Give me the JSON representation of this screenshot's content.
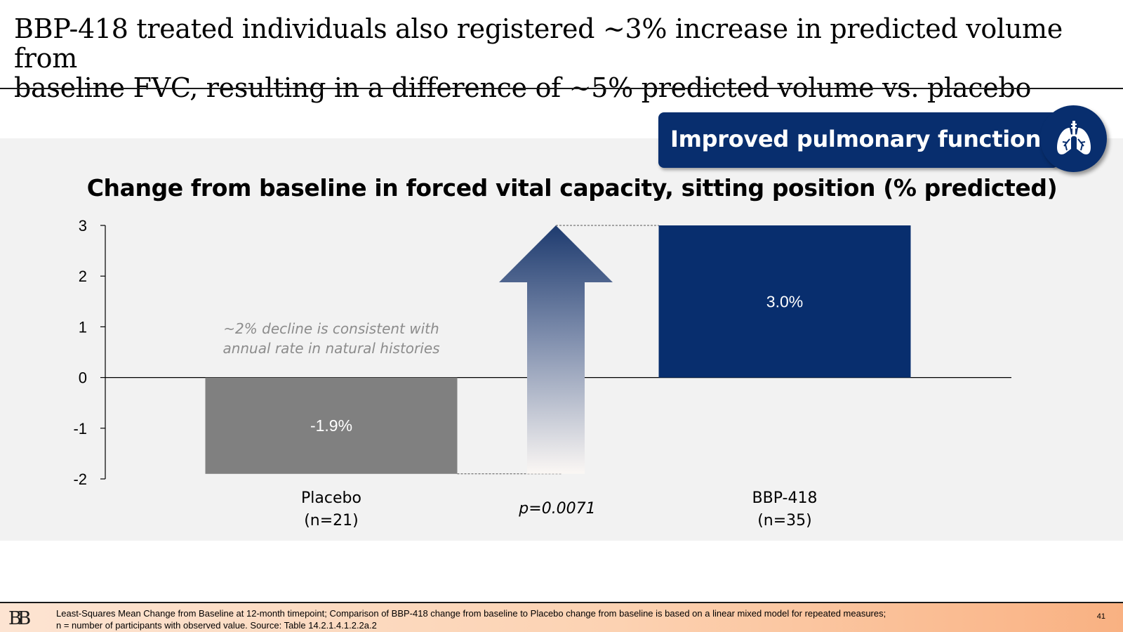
{
  "slide": {
    "title_line1": "BBP-418 treated individuals also registered ~3% increase in predicted volume from",
    "title_line2": "baseline FVC, resulting in a difference of ~5% predicted volume vs. placebo"
  },
  "banner": {
    "text": "Improved pulmonary function",
    "icon": "lungs-icon"
  },
  "chart_data": {
    "type": "bar",
    "title": "Change from baseline in forced vital capacity, sitting position (% predicted)",
    "categories": [
      {
        "name": "Placebo",
        "n_label": "(n=21)"
      },
      {
        "name": "BBP-418",
        "n_label": "(n=35)"
      }
    ],
    "values": [
      -1.9,
      3.0
    ],
    "data_labels": [
      "-1.9%",
      "3.0%"
    ],
    "colors": [
      "#808080",
      "#082e6e"
    ],
    "ylim": [
      -2,
      3
    ],
    "yticks": [
      "3",
      "2",
      "1",
      "0",
      "-1",
      "-2"
    ],
    "annotation": {
      "line1": "~2% decline is consistent with",
      "line2": "annual rate in natural histories"
    },
    "pvalue": "p=0.0071",
    "difference_arrow": {
      "from": -1.9,
      "to": 3.0
    }
  },
  "footer": {
    "logo": "BB",
    "note_line1": "Least-Squares Mean Change from Baseline at 12-month timepoint; Comparison of BBP-418 change from baseline to Placebo change from baseline is based on a linear mixed model for repeated measures;",
    "note_line2": "n = number of participants with observed value. Source: Table 14.2.1.4.1.2.2a.2",
    "page": "41"
  }
}
